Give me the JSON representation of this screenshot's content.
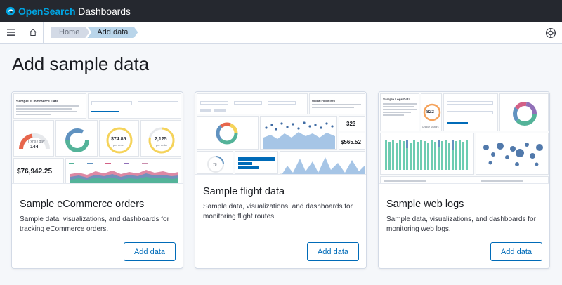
{
  "header": {
    "brand_prefix": "Open",
    "brand_mid": "Search",
    "brand_suffix": " Dashboards"
  },
  "breadcrumbs": [
    "Home",
    "Add data"
  ],
  "page_title": "Add sample data",
  "cards": [
    {
      "title": "Sample eCommerce orders",
      "description": "Sample data, visualizations, and dashboards for tracking eCommerce orders.",
      "button": "Add data",
      "thumb": {
        "heading": "Sample eCommerce Data",
        "gauge_label": "Trxns / day",
        "gauge_value": "144",
        "circle_1_value": "$74.85",
        "circle_1_label": "per order",
        "circle_2_value": "2,125",
        "circle_2_label": "per order",
        "revenue": "$76,942.25"
      }
    },
    {
      "title": "Sample flight data",
      "description": "Sample data, visualizations, and dashboards for monitoring flight routes.",
      "button": "Add data",
      "thumb": {
        "heading": "Global Flight Info",
        "count": "323",
        "price": "$565.52",
        "gauge": "78"
      }
    },
    {
      "title": "Sample web logs",
      "description": "Sample data, visualizations, and dashboards for monitoring web logs.",
      "button": "Add data",
      "thumb": {
        "heading": "Sample Logs Data",
        "gauge_value": "822",
        "gauge_label": "Unique Visitors"
      }
    }
  ],
  "colors": {
    "header_bg": "#25282f",
    "brand": "#00a3e0",
    "primary": "#006bb8",
    "breadcrumb_active": "#b9d5ea"
  }
}
